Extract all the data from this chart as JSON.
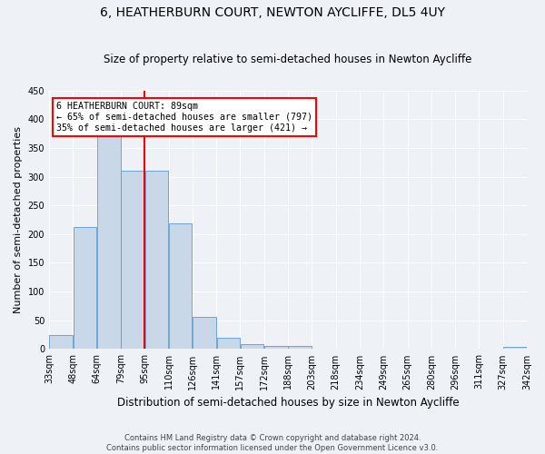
{
  "title": "6, HEATHERBURN COURT, NEWTON AYCLIFFE, DL5 4UY",
  "subtitle": "Size of property relative to semi-detached houses in Newton Aycliffe",
  "xlabel": "Distribution of semi-detached houses by size in Newton Aycliffe",
  "ylabel": "Number of semi-detached properties",
  "bar_values": [
    25,
    212,
    370,
    311,
    311,
    219,
    56,
    20,
    8,
    6,
    5,
    0,
    0,
    0,
    0,
    0,
    0,
    0,
    0,
    4
  ],
  "bar_labels": [
    "33sqm",
    "48sqm",
    "64sqm",
    "79sqm",
    "95sqm",
    "110sqm",
    "126sqm",
    "141sqm",
    "157sqm",
    "172sqm",
    "188sqm",
    "203sqm",
    "218sqm",
    "234sqm",
    "249sqm",
    "265sqm",
    "280sqm",
    "296sqm",
    "311sqm",
    "327sqm",
    "342sqm"
  ],
  "bar_color": "#c8d8e8",
  "bar_edge_color": "#5b9bd5",
  "vline_color": "red",
  "ylim": [
    0,
    450
  ],
  "yticks": [
    0,
    50,
    100,
    150,
    200,
    250,
    300,
    350,
    400,
    450
  ],
  "annotation_title": "6 HEATHERBURN COURT: 89sqm",
  "annotation_line1": "← 65% of semi-detached houses are smaller (797)",
  "annotation_line2": "35% of semi-detached houses are larger (421) →",
  "footnote1": "Contains HM Land Registry data © Crown copyright and database right 2024.",
  "footnote2": "Contains public sector information licensed under the Open Government Licence v3.0.",
  "bg_color": "#eef2f7",
  "plot_bg_color": "#eef2f7",
  "vline_bar_index": 4
}
